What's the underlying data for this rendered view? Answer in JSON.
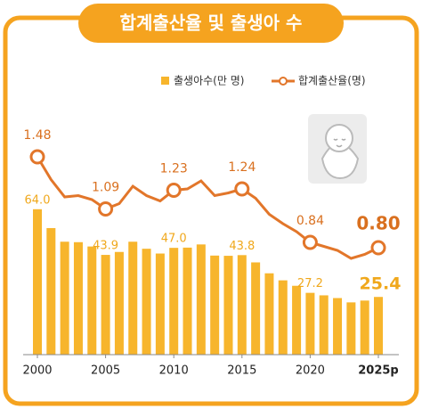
{
  "chart_data": {
    "type": "bar-line",
    "title": "합계출산율 및 출생아 수",
    "x": [
      2000,
      2001,
      2002,
      2003,
      2004,
      2005,
      2006,
      2007,
      2008,
      2009,
      2010,
      2011,
      2012,
      2013,
      2014,
      2015,
      2016,
      2017,
      2018,
      2019,
      2020,
      2021,
      2022,
      2023,
      2024,
      2025
    ],
    "xlim": [
      2000,
      2025
    ],
    "xticks": [
      2000,
      2005,
      2010,
      2015,
      2020,
      {
        "value": 2025,
        "label": "2025p"
      }
    ],
    "ylim": [
      0,
      100
    ],
    "y2lim": [
      0,
      1.7
    ],
    "series": [
      {
        "name": "출생아수(만 명)",
        "type": "bar",
        "color": "#f7b52c",
        "values": [
          64.0,
          55.7,
          49.7,
          49.5,
          47.6,
          43.9,
          45.2,
          49.7,
          46.6,
          44.5,
          47.0,
          47.1,
          48.5,
          43.6,
          43.5,
          43.8,
          40.6,
          35.8,
          32.7,
          30.3,
          27.2,
          26.1,
          24.9,
          23.0,
          23.8,
          25.4
        ],
        "value_labels": [
          "64.0",
          null,
          null,
          null,
          null,
          "43.9",
          null,
          null,
          null,
          null,
          "47.0",
          null,
          null,
          null,
          null,
          "43.8",
          null,
          null,
          null,
          null,
          "27.2",
          null,
          null,
          null,
          null,
          "25.4"
        ]
      },
      {
        "name": "합계출산율(명)",
        "type": "line",
        "axis": "y2",
        "color": "#e2762a",
        "values": [
          1.48,
          1.31,
          1.18,
          1.19,
          1.16,
          1.09,
          1.13,
          1.26,
          1.19,
          1.15,
          1.23,
          1.24,
          1.3,
          1.19,
          1.21,
          1.24,
          1.17,
          1.05,
          0.98,
          0.92,
          0.84,
          0.81,
          0.78,
          0.72,
          0.75,
          0.8
        ],
        "value_labels": [
          "1.48",
          null,
          null,
          null,
          null,
          "1.09",
          null,
          null,
          null,
          null,
          "1.23",
          null,
          null,
          null,
          null,
          "1.24",
          null,
          null,
          null,
          null,
          "0.84",
          null,
          null,
          null,
          null,
          "0.80"
        ]
      }
    ]
  }
}
